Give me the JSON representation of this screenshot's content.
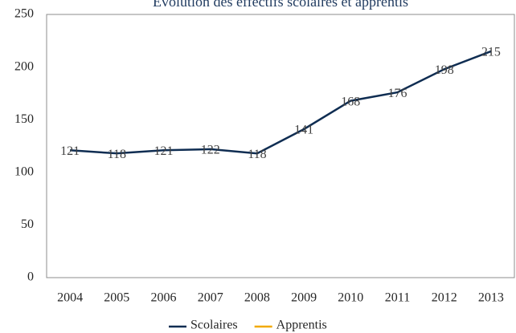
{
  "chart_data": {
    "type": "line",
    "title": "Évolution des effectifs scolaires et apprentis",
    "categories": [
      "2004",
      "2005",
      "2006",
      "2007",
      "2008",
      "2009",
      "2010",
      "2011",
      "2012",
      "2013"
    ],
    "series": [
      {
        "name": "Scolaires",
        "color": "#0f2d52",
        "values": [
          121,
          118,
          121,
          122,
          118,
          141,
          168,
          176,
          198,
          215
        ]
      },
      {
        "name": "Apprentis",
        "color": "#f2a900",
        "values": [
          null,
          null,
          null,
          null,
          null,
          null,
          null,
          null,
          null,
          null
        ]
      }
    ],
    "ylim": [
      0,
      250
    ],
    "yticks": [
      0,
      50,
      100,
      150,
      200,
      250
    ],
    "grid": false,
    "legend": "bottom",
    "data_labels": true
  }
}
